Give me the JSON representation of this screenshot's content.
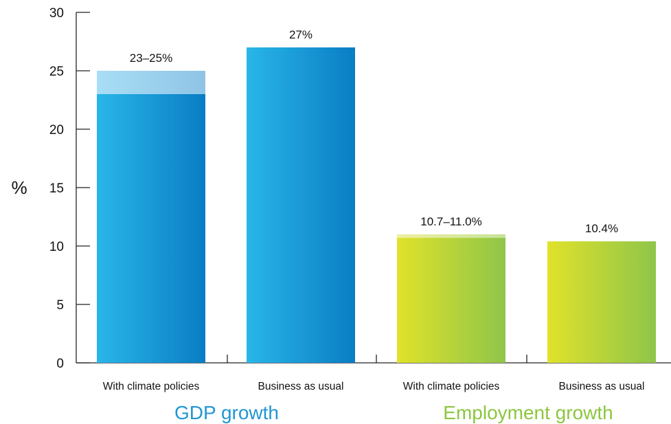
{
  "chart_data": {
    "type": "bar",
    "ylabel": "%",
    "ylim": [
      0,
      30
    ],
    "yticks": [
      0,
      5,
      10,
      15,
      20,
      25,
      30
    ],
    "grid": false,
    "categories": [
      "With climate policies",
      "Business as usual",
      "With climate policies",
      "Business as usual"
    ],
    "groups": [
      {
        "label": "GDP growth",
        "color": "#2196d4",
        "categories": [
          "With climate policies",
          "Business as usual"
        ]
      },
      {
        "label": "Employment growth",
        "color": "#8cc63f",
        "categories": [
          "With climate policies",
          "Business as usual"
        ]
      }
    ],
    "bars": [
      {
        "group": "GDP growth",
        "category": "With climate policies",
        "low": 23,
        "high": 25,
        "label": "23–25%"
      },
      {
        "group": "GDP growth",
        "category": "Business as usual",
        "value": 27,
        "label": "27%"
      },
      {
        "group": "Employment growth",
        "category": "With climate policies",
        "low": 10.7,
        "high": 11.0,
        "label": "10.7–11.0%"
      },
      {
        "group": "Employment growth",
        "category": "Business as usual",
        "value": 10.4,
        "label": "10.4%"
      }
    ]
  }
}
